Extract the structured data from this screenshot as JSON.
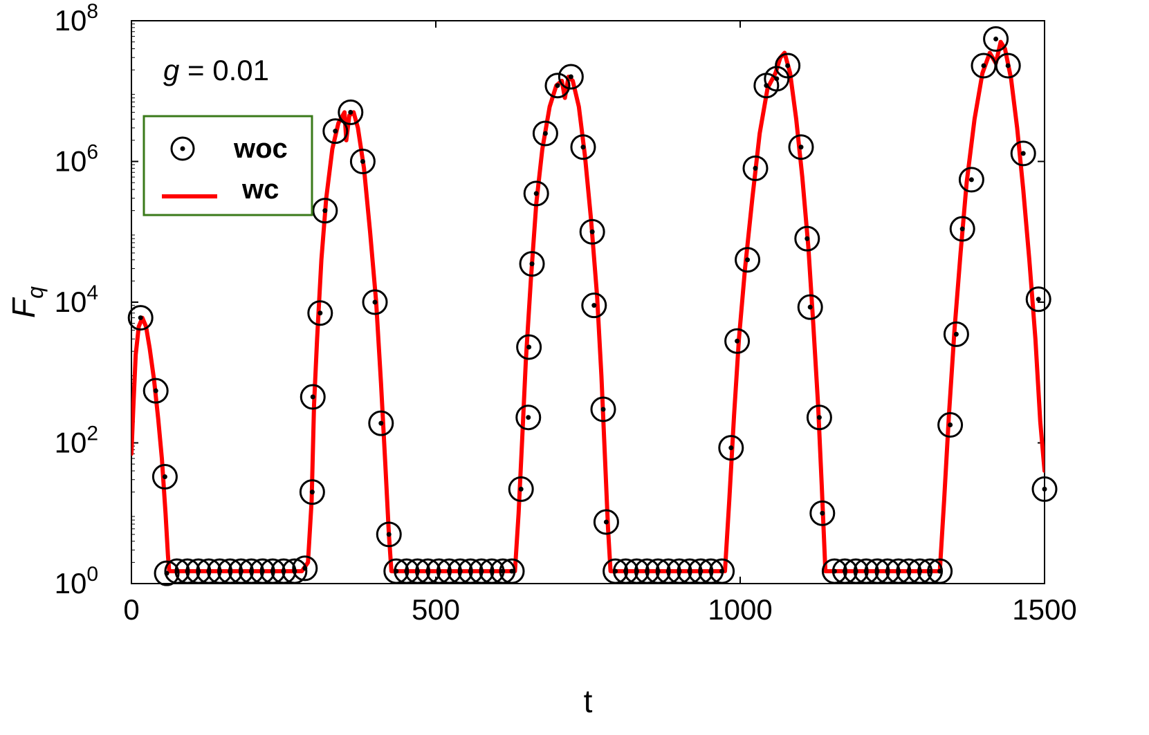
{
  "chart_data": {
    "type": "scatter",
    "xlabel": "t",
    "ylabel": "F",
    "ylabel_subscript": "q",
    "annotation": {
      "variable": "g",
      "text": " = 0.01"
    },
    "xlim": [
      0,
      1500
    ],
    "ylim_exponent": [
      0,
      8
    ],
    "yscale": "log",
    "grid": false,
    "legend_position": "upper-left",
    "x_ticks": [
      "0",
      "500",
      "1000",
      "1500"
    ],
    "y_ticks": [
      {
        "base": "10",
        "exp": "0"
      },
      {
        "base": "10",
        "exp": "2"
      },
      {
        "base": "10",
        "exp": "4"
      },
      {
        "base": "10",
        "exp": "6"
      },
      {
        "base": "10",
        "exp": "8"
      }
    ],
    "colors": {
      "markers": "#000000",
      "line": "#ff0000",
      "legend_border": "#3a7a1a"
    },
    "series": [
      {
        "name": "woc",
        "kind": "markers",
        "points": [
          [
            15,
            6000
          ],
          [
            40,
            550
          ],
          [
            55,
            33
          ],
          [
            58,
            1.4
          ],
          [
            75,
            1.5
          ],
          [
            92,
            1.5
          ],
          [
            110,
            1.5
          ],
          [
            127,
            1.5
          ],
          [
            145,
            1.5
          ],
          [
            162,
            1.5
          ],
          [
            180,
            1.5
          ],
          [
            197,
            1.5
          ],
          [
            215,
            1.5
          ],
          [
            232,
            1.5
          ],
          [
            250,
            1.5
          ],
          [
            268,
            1.5
          ],
          [
            285,
            1.65
          ],
          [
            297,
            20
          ],
          [
            298,
            450
          ],
          [
            310,
            7000
          ],
          [
            318,
            200000.0
          ],
          [
            335,
            2700000.0
          ],
          [
            360,
            5000000.0
          ],
          [
            380,
            1000000.0
          ],
          [
            400,
            10000.0
          ],
          [
            410,
            190
          ],
          [
            423,
            5
          ],
          [
            435,
            1.5
          ],
          [
            452,
            1.5
          ],
          [
            470,
            1.5
          ],
          [
            487,
            1.5
          ],
          [
            505,
            1.5
          ],
          [
            522,
            1.5
          ],
          [
            540,
            1.5
          ],
          [
            557,
            1.5
          ],
          [
            575,
            1.5
          ],
          [
            592,
            1.5
          ],
          [
            610,
            1.5
          ],
          [
            625,
            1.5
          ],
          [
            640,
            22
          ],
          [
            652,
            230
          ],
          [
            653,
            2300
          ],
          [
            658,
            35000.0
          ],
          [
            665,
            350000.0
          ],
          [
            680,
            2500000.0
          ],
          [
            700,
            12000000.0
          ],
          [
            722,
            16000000.0
          ],
          [
            742,
            1600000.0
          ],
          [
            757,
            100000.0
          ],
          [
            760,
            9000
          ],
          [
            775,
            300
          ],
          [
            780,
            7.5
          ],
          [
            795,
            1.5
          ],
          [
            812,
            1.5
          ],
          [
            830,
            1.5
          ],
          [
            847,
            1.5
          ],
          [
            865,
            1.5
          ],
          [
            882,
            1.5
          ],
          [
            900,
            1.5
          ],
          [
            917,
            1.5
          ],
          [
            935,
            1.5
          ],
          [
            952,
            1.5
          ],
          [
            970,
            1.5
          ],
          [
            985,
            85
          ],
          [
            995,
            2800
          ],
          [
            1012,
            40000.0
          ],
          [
            1025,
            800000.0
          ],
          [
            1043,
            12000000.0
          ],
          [
            1060,
            15000000.0
          ],
          [
            1078,
            23000000.0
          ],
          [
            1100,
            1600000.0
          ],
          [
            1110,
            80000.0
          ],
          [
            1115,
            8500
          ],
          [
            1130,
            230
          ],
          [
            1135,
            10
          ],
          [
            1155,
            1.5
          ],
          [
            1172,
            1.5
          ],
          [
            1190,
            1.5
          ],
          [
            1207,
            1.5
          ],
          [
            1225,
            1.5
          ],
          [
            1242,
            1.5
          ],
          [
            1260,
            1.5
          ],
          [
            1277,
            1.5
          ],
          [
            1295,
            1.5
          ],
          [
            1312,
            1.5
          ],
          [
            1328,
            1.5
          ],
          [
            1345,
            180
          ],
          [
            1355,
            3500
          ],
          [
            1365,
            110000.0
          ],
          [
            1380,
            550000.0
          ],
          [
            1400,
            23000000.0
          ],
          [
            1420,
            55000000.0
          ],
          [
            1440,
            23000000.0
          ],
          [
            1465,
            1300000.0
          ],
          [
            1490,
            11000.0
          ],
          [
            1500,
            22
          ]
        ]
      },
      {
        "name": "wc",
        "kind": "line",
        "points": [
          [
            0,
            70
          ],
          [
            3,
            300
          ],
          [
            7,
            1800
          ],
          [
            12,
            4500
          ],
          [
            18,
            6000
          ],
          [
            24,
            4500
          ],
          [
            30,
            2200
          ],
          [
            37,
            800
          ],
          [
            44,
            220
          ],
          [
            50,
            60
          ],
          [
            56,
            10
          ],
          [
            60,
            2.5
          ],
          [
            62,
            1.5
          ],
          [
            280,
            1.5
          ],
          [
            290,
            2
          ],
          [
            296,
            15
          ],
          [
            300,
            350
          ],
          [
            305,
            3000
          ],
          [
            312,
            40000.0
          ],
          [
            320,
            300000.0
          ],
          [
            330,
            1500000.0
          ],
          [
            340,
            3500000.0
          ],
          [
            350,
            5000000.0
          ],
          [
            353,
            2000000.0
          ],
          [
            358,
            4500000.0
          ],
          [
            365,
            5000000.0
          ],
          [
            372,
            3000000.0
          ],
          [
            382,
            800000.0
          ],
          [
            392,
            100000.0
          ],
          [
            402,
            10000.0
          ],
          [
            410,
            700
          ],
          [
            417,
            50
          ],
          [
            423,
            5
          ],
          [
            427,
            1.5
          ],
          [
            630,
            1.5
          ],
          [
            636,
            10
          ],
          [
            642,
            120
          ],
          [
            648,
            1500
          ],
          [
            656,
            20000.0
          ],
          [
            665,
            250000.0
          ],
          [
            675,
            1500000.0
          ],
          [
            687,
            6000000.0
          ],
          [
            698,
            12000000.0
          ],
          [
            707,
            14000000.0
          ],
          [
            712,
            8000000.0
          ],
          [
            718,
            16000000.0
          ],
          [
            725,
            14000000.0
          ],
          [
            735,
            6000000.0
          ],
          [
            745,
            1200000.0
          ],
          [
            755,
            150000.0
          ],
          [
            765,
            12000.0
          ],
          [
            772,
            900
          ],
          [
            778,
            60
          ],
          [
            783,
            6
          ],
          [
            787,
            1.5
          ],
          [
            975,
            1.5
          ],
          [
            982,
            15
          ],
          [
            990,
            250
          ],
          [
            998,
            3000
          ],
          [
            1008,
            30000.0
          ],
          [
            1020,
            300000.0
          ],
          [
            1032,
            2500000.0
          ],
          [
            1045,
            11000000.0
          ],
          [
            1058,
            18000000.0
          ],
          [
            1066,
            30000000.0
          ],
          [
            1073,
            35000000.0
          ],
          [
            1082,
            18000000.0
          ],
          [
            1092,
            4000000.0
          ],
          [
            1102,
            600000.0
          ],
          [
            1112,
            60000.0
          ],
          [
            1120,
            5000
          ],
          [
            1128,
            350
          ],
          [
            1134,
            25
          ],
          [
            1140,
            1.5
          ],
          [
            1328,
            1.5
          ],
          [
            1335,
            15
          ],
          [
            1343,
            250
          ],
          [
            1352,
            4000
          ],
          [
            1362,
            50000.0
          ],
          [
            1372,
            500000.0
          ],
          [
            1385,
            4000000.0
          ],
          [
            1398,
            18000000.0
          ],
          [
            1410,
            35000000.0
          ],
          [
            1420,
            25000000.0
          ],
          [
            1428,
            50000000.0
          ],
          [
            1435,
            40000000.0
          ],
          [
            1445,
            15000000.0
          ],
          [
            1455,
            3000000.0
          ],
          [
            1465,
            400000.0
          ],
          [
            1475,
            40000.0
          ],
          [
            1485,
            3000
          ],
          [
            1493,
            200
          ],
          [
            1500,
            40
          ]
        ]
      }
    ]
  }
}
